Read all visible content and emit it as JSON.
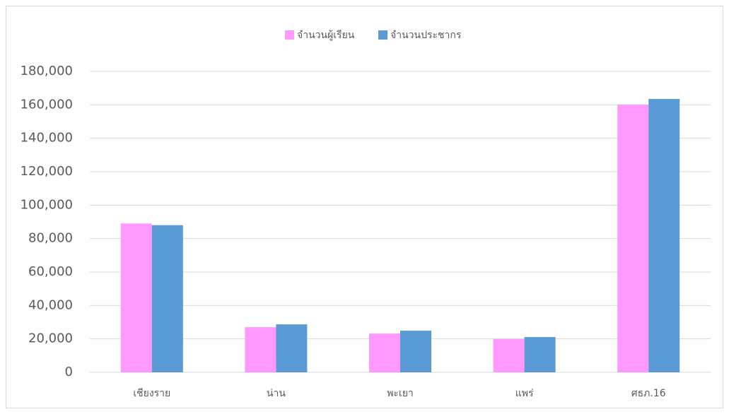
{
  "chart_data": {
    "type": "bar",
    "categories": [
      "เชียงราย",
      "น่าน",
      "พะเยา",
      "แพร่",
      "ศธภ.16"
    ],
    "series": [
      {
        "name": "จำนวนผู้เรียน",
        "color": "#ff99ff",
        "values": [
          89000,
          27000,
          23200,
          19900,
          160100
        ]
      },
      {
        "name": "จำนวนประชากร",
        "color": "#5b9bd5",
        "values": [
          88000,
          28700,
          24900,
          21100,
          163500
        ]
      }
    ],
    "ylim": [
      0,
      180000
    ],
    "yticks": [
      0,
      {
        "value": 20000,
        "label": "20,000"
      },
      {
        "value": 40000,
        "label": "40,000"
      },
      {
        "value": 60000,
        "label": "60,000"
      },
      {
        "value": 80000,
        "label": "80,000"
      },
      {
        "value": 100000,
        "label": "100,000"
      },
      {
        "value": 120000,
        "label": "120,000"
      },
      {
        "value": 140000,
        "label": "140,000"
      },
      {
        "value": 160000,
        "label": "160,000"
      },
      {
        "value": 180000,
        "label": "180,000"
      }
    ],
    "grid": true,
    "legend": "top"
  }
}
